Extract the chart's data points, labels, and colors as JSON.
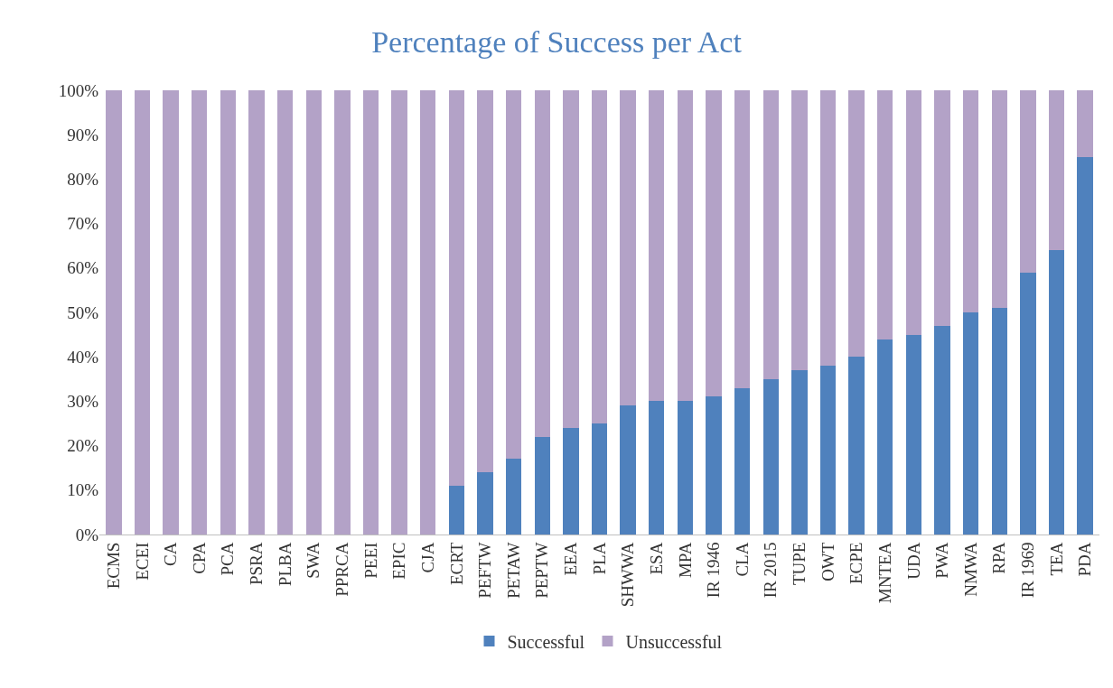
{
  "chart_data": {
    "type": "bar",
    "title": "Percentage of Success per Act",
    "stacked": true,
    "legend": "bottom",
    "grid": false,
    "categories": [
      "ECMS",
      "ECEI",
      "CA",
      "CPA",
      "PCA",
      "PSRA",
      "PLBA",
      "SWA",
      "PPRCA",
      "PEEI",
      "EPIC",
      "CJA",
      "ECRT",
      "PEFTW",
      "PETAW",
      "PEPTW",
      "EEA",
      "PLA",
      "SHWWA",
      "ESA",
      "MPA",
      "IR 1946",
      "CLA",
      "IR 2015",
      "TUPE",
      "OWT",
      "ECPE",
      "MNTEA",
      "UDA",
      "PWA",
      "NMWA",
      "RPA",
      "IR 1969",
      "TEA",
      "PDA"
    ],
    "series": [
      {
        "name": "Successful",
        "color": "#4f81bd",
        "values": [
          0,
          0,
          0,
          0,
          0,
          0,
          0,
          0,
          0,
          0,
          0,
          0,
          11,
          14,
          17,
          22,
          24,
          25,
          29,
          30,
          30,
          31,
          33,
          35,
          37,
          38,
          40,
          44,
          45,
          47,
          50,
          51,
          59,
          64,
          85
        ]
      },
      {
        "name": "Unsuccessful",
        "color": "#b3a2c7",
        "values": [
          100,
          100,
          100,
          100,
          100,
          100,
          100,
          100,
          100,
          100,
          100,
          100,
          89,
          86,
          83,
          78,
          76,
          75,
          71,
          70,
          70,
          69,
          67,
          65,
          63,
          62,
          60,
          56,
          55,
          53,
          50,
          49,
          41,
          36,
          15
        ]
      }
    ],
    "ylim": [
      0,
      100
    ],
    "yticks": [
      {
        "value": 0,
        "label": "0%"
      },
      {
        "value": 10,
        "label": "10%"
      },
      {
        "value": 20,
        "label": "20%"
      },
      {
        "value": 30,
        "label": "30%"
      },
      {
        "value": 40,
        "label": "40%"
      },
      {
        "value": 50,
        "label": "50%"
      },
      {
        "value": 60,
        "label": "60%"
      },
      {
        "value": 70,
        "label": "70%"
      },
      {
        "value": 80,
        "label": "80%"
      },
      {
        "value": 90,
        "label": "90%"
      },
      {
        "value": 100,
        "label": "100%"
      }
    ]
  }
}
